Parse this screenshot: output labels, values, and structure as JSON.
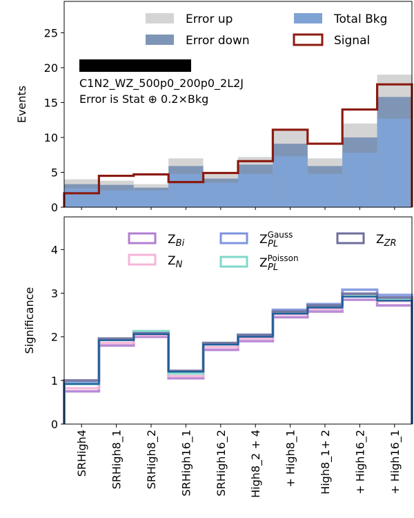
{
  "chart_data": [
    {
      "type": "bar",
      "ylabel": "Events",
      "ylim": [
        0,
        29.5
      ],
      "yticks": [
        0,
        5,
        10,
        15,
        20,
        25
      ],
      "categories": [
        "SRHigh4",
        "SRHigh8_1",
        "SRHigh8_2",
        "SRHigh16_1",
        "SRHigh16_2",
        "High8_2 + 4",
        "+ High8_1",
        "High8_1+ 2",
        "+ High16_2",
        "+ High16_1"
      ],
      "annotation_lines": [
        "C1N2_WZ_500p0_200p0_2L2J",
        "Error is Stat ⊕ 0.2×Bkg"
      ],
      "legend": {
        "placement": "top",
        "entries": [
          "Error up",
          "Total Bkg",
          "Error down",
          "Signal"
        ]
      },
      "colors": {
        "error_up": "#d4d4d4",
        "total_bkg": "#7fa2d4",
        "error_down": "#7f95b5",
        "signal": "#8b1a10"
      },
      "series": [
        {
          "name": "Total Bkg",
          "values": [
            2.7,
            2.4,
            2.4,
            4.8,
            3.5,
            4.8,
            7.3,
            4.8,
            7.8,
            12.7
          ]
        },
        {
          "name": "Error up",
          "values": [
            4.0,
            3.8,
            3.3,
            7.0,
            4.7,
            7.2,
            10.9,
            7.0,
            12.0,
            19.0
          ]
        },
        {
          "name": "Error down",
          "values": [
            3.3,
            3.2,
            2.8,
            5.9,
            4.1,
            6.1,
            9.1,
            5.9,
            10.0,
            15.8
          ]
        },
        {
          "name": "Signal",
          "values": [
            2.0,
            4.5,
            4.7,
            3.6,
            4.9,
            6.6,
            11.1,
            9.1,
            14.0,
            17.6
          ]
        }
      ]
    },
    {
      "type": "line",
      "ylabel": "Significance",
      "ylim": [
        0,
        4.75
      ],
      "yticks": [
        0,
        1,
        2,
        3,
        4
      ],
      "categories": [
        "SRHigh4",
        "SRHigh8_1",
        "SRHigh8_2",
        "SRHigh16_1",
        "SRHigh16_2",
        "High8_2 + 4",
        "+ High8_1",
        "High8_1+ 2",
        "+ High16_2",
        "+ High16_1"
      ],
      "legend": {
        "placement": "top"
      },
      "series": [
        {
          "name": "Z",
          "sub": "Bi",
          "sup": "",
          "color": "#b37ed1",
          "values": [
            0.75,
            1.8,
            2.0,
            1.05,
            1.7,
            1.9,
            2.45,
            2.58,
            2.85,
            2.72
          ]
        },
        {
          "name": "Z",
          "sub": "N",
          "sup": "",
          "color": "#f5b5d8",
          "values": [
            0.82,
            1.86,
            2.04,
            1.1,
            1.76,
            1.96,
            2.52,
            2.64,
            2.96,
            2.82
          ]
        },
        {
          "name": "Z",
          "sub": "PL",
          "sup": "Gauss",
          "color": "#7d93de",
          "values": [
            0.95,
            1.95,
            2.1,
            1.2,
            1.84,
            2.05,
            2.62,
            2.75,
            3.08,
            2.96
          ]
        },
        {
          "name": "Z",
          "sub": "PL",
          "sup": "Poisson",
          "color": "#7fd9c9",
          "values": [
            0.92,
            1.94,
            2.13,
            1.16,
            1.83,
            2.03,
            2.57,
            2.71,
            2.93,
            2.86
          ]
        },
        {
          "name": "Z",
          "sub": "ZR",
          "sup": "",
          "color": "#6d6e9c",
          "values": [
            1.0,
            1.96,
            2.08,
            1.22,
            1.86,
            2.04,
            2.58,
            2.72,
            2.99,
            2.9
          ]
        },
        {
          "name": "",
          "sub": "",
          "sup": "",
          "color": "#1f5e9a",
          "values": [
            0.92,
            1.92,
            2.06,
            1.2,
            1.82,
            2.0,
            2.53,
            2.67,
            2.92,
            2.83
          ]
        }
      ]
    }
  ]
}
